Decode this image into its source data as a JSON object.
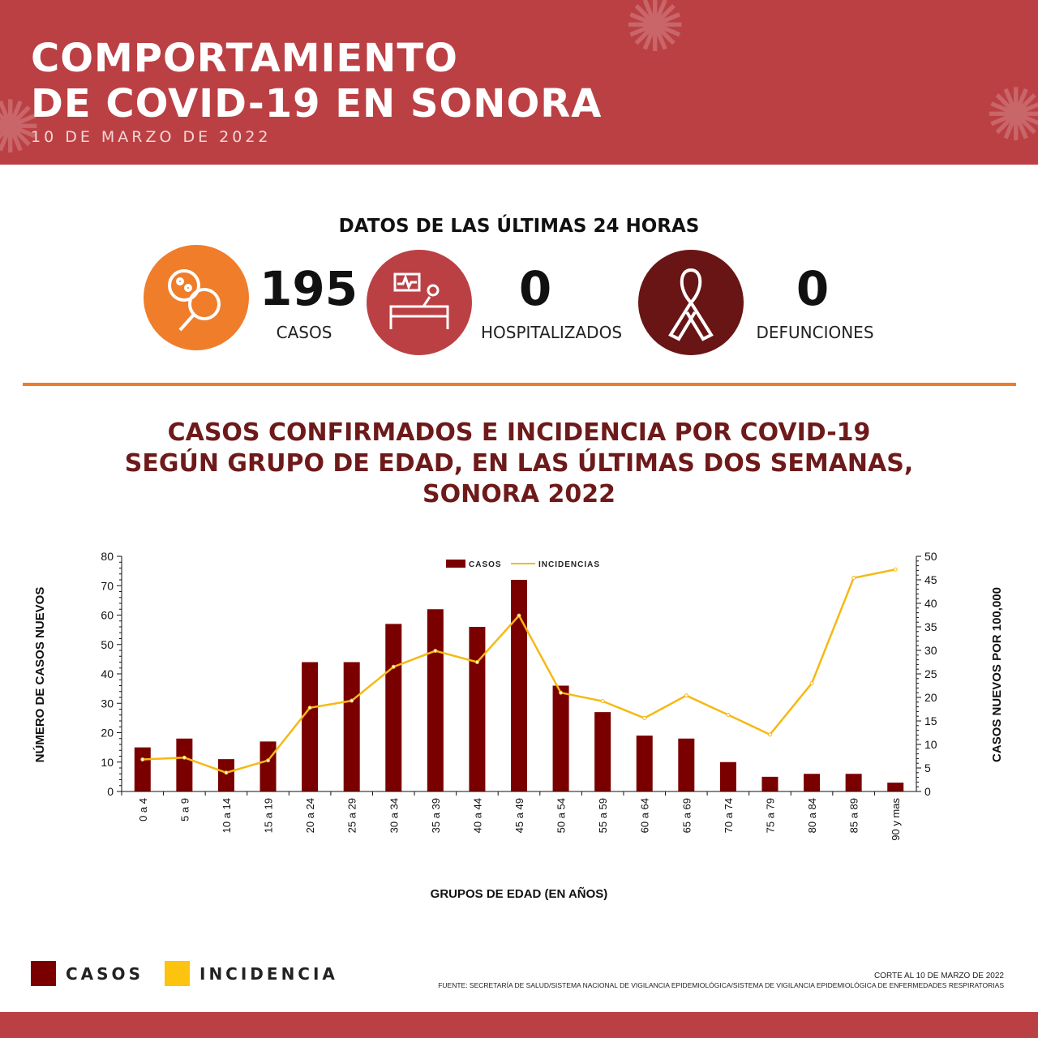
{
  "header": {
    "title_line1": "COMPORTAMIENTO",
    "title_line2": "DE COVID-19 EN SONORA",
    "date": "10 DE MARZO DE 2022",
    "color": "#bb4044"
  },
  "last24": {
    "heading": "DATOS DE LAS ÚLTIMAS 24 HORAS",
    "items": [
      {
        "value": "195",
        "label": "CASOS",
        "icon": "virus-magnifier-icon",
        "color": "#ef7d2a"
      },
      {
        "value": "0",
        "label": "HOSPITALIZADOS",
        "icon": "hospital-bed-icon",
        "color": "#bb4044"
      },
      {
        "value": "0",
        "label": "DEFUNCIONES",
        "icon": "ribbon-icon",
        "color": "#6a1515"
      }
    ]
  },
  "chart_title": [
    "CASOS CONFIRMADOS E INCIDENCIA POR COVID-19",
    "SEGÚN GRUPO DE EDAD, EN LAS ÚLTIMAS DOS SEMANAS,",
    "SONORA 2022"
  ],
  "chart_data": {
    "type": "bar+line",
    "categories": [
      "0 a 4",
      "5 a 9",
      "10 a 14",
      "15 a 19",
      "20 a 24",
      "25 a 29",
      "30 a 34",
      "35 a 39",
      "40 a 44",
      "45 a 49",
      "50 a 54",
      "55 a 59",
      "60 a 64",
      "65 a 69",
      "70 a 74",
      "75 a 79",
      "80 a 84",
      "85 a 89",
      "90 y mas"
    ],
    "series": [
      {
        "name": "CASOS",
        "type": "bar",
        "axis": "left",
        "color": "#7a0000",
        "values": [
          15,
          18,
          11,
          17,
          44,
          44,
          57,
          62,
          56,
          72,
          36,
          27,
          19,
          18,
          10,
          5,
          6,
          6,
          3
        ]
      },
      {
        "name": "INCIDENCIAS",
        "type": "line",
        "axis": "right",
        "color": "#f5b914",
        "values": [
          6.8,
          7.2,
          4.0,
          6.6,
          17.8,
          19.3,
          26.5,
          29.9,
          27.5,
          37.4,
          21.0,
          19.2,
          15.6,
          20.4,
          16.3,
          12.1,
          23.0,
          45.4,
          47.2
        ]
      }
    ],
    "xlabel": "GRUPOS DE EDAD (EN AÑOS)",
    "ylabel": "NÚMERO DE CASOS NUEVOS",
    "y2label": "CASOS NUEVOS POR 100,000",
    "ylim": [
      0,
      80
    ],
    "yticks": [
      0,
      10,
      20,
      30,
      40,
      50,
      60,
      70,
      80
    ],
    "y2lim": [
      0,
      50
    ],
    "y2ticks": [
      0,
      5,
      10,
      15,
      20,
      25,
      30,
      35,
      40,
      45,
      50
    ],
    "legend": "top-center",
    "grid": false
  },
  "legend_bottom": [
    {
      "label": "CASOS",
      "color": "#7a0000"
    },
    {
      "label": "INCIDENCIA",
      "color": "#fcc30f"
    }
  ],
  "footer": {
    "cut": "CORTE AL 10 DE MARZO DE 2022",
    "source": "FUENTE: SECRETARÍA DE SALUD/SISTEMA NACIONAL DE VIGILANCIA EPIDEMIOLÓGICA/SISTEMA DE VIGILANCIA EPIDEMIOLÓGICA DE ENFERMEDADES RESPIRATORIAS"
  }
}
